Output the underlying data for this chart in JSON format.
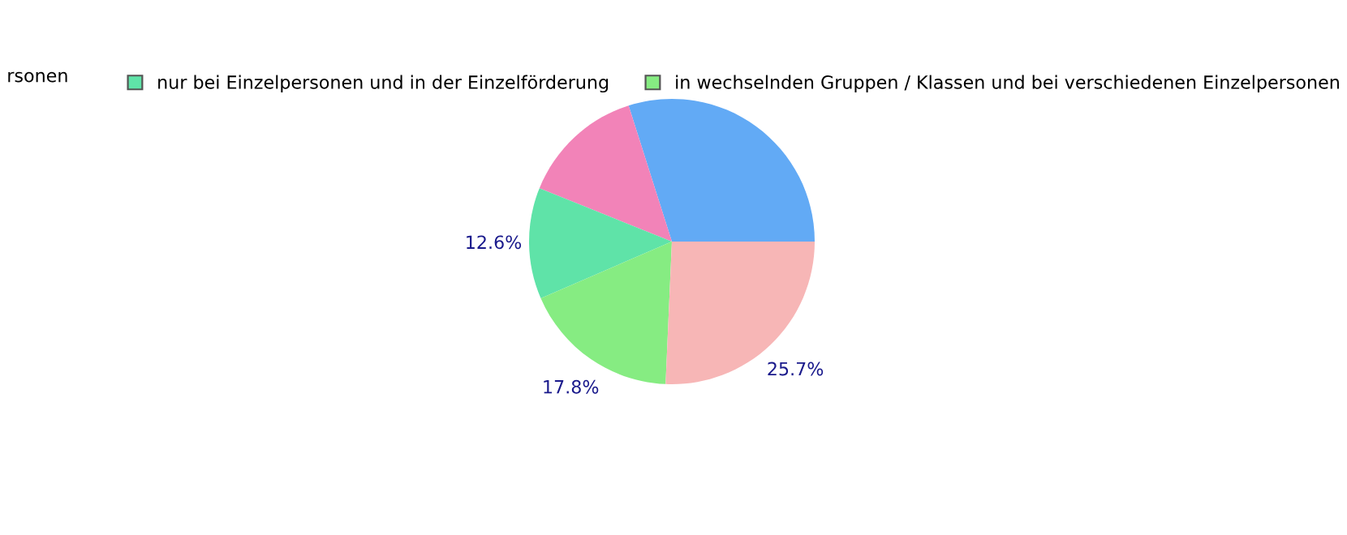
{
  "chart_data": {
    "type": "pie",
    "categories": [
      null,
      null,
      "nur bei Einzelpersonen und in der Einzelförderung",
      "in wechselnden Gruppen / Klassen und bei verschiedenen Einzelpersonen",
      null
    ],
    "values": [
      29.9,
      14.0,
      12.6,
      17.8,
      25.7
    ],
    "colors": [
      "#62aaf5",
      "#f283b8",
      "#5fe3a8",
      "#86ec82",
      "#f7b6b6"
    ],
    "value_labels": [
      null,
      null,
      "12.6%",
      "17.8%",
      "25.7%"
    ],
    "legend": "top",
    "annotations": [
      "rsonen"
    ]
  }
}
